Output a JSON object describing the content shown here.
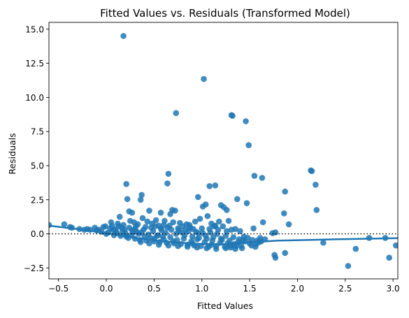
{
  "chart_data": {
    "type": "scatter",
    "title": "Fitted Values vs. Residuals (Transformed Model)",
    "xlabel": "Fitted Values",
    "ylabel": "Residuals",
    "xlim": [
      -0.6,
      3.05
    ],
    "ylim": [
      -3.3,
      15.5
    ],
    "x_ticks": [
      "−0.5",
      "0.0",
      "0.5",
      "1.0",
      "1.5",
      "2.0",
      "2.5",
      "3.0"
    ],
    "x_tick_values": [
      -0.5,
      0.0,
      0.5,
      1.0,
      1.5,
      2.0,
      2.5,
      3.0
    ],
    "y_ticks": [
      "−2.5",
      "0.0",
      "2.5",
      "5.0",
      "7.5",
      "10.0",
      "12.5",
      "15.0"
    ],
    "y_tick_values": [
      -2.5,
      0.0,
      2.5,
      5.0,
      7.5,
      10.0,
      12.5,
      15.0
    ],
    "grid": false,
    "point_color": "#1f77b4",
    "reference_line": {
      "y": 0,
      "style": "dotted",
      "color": "#000000"
    },
    "trend_line": {
      "x": [
        -0.6,
        -0.3,
        0.0,
        0.3,
        0.6,
        0.9,
        1.2,
        1.5,
        1.8,
        2.1,
        2.4,
        2.7,
        3.05
      ],
      "y": [
        0.6,
        0.35,
        0.05,
        -0.3,
        -0.55,
        -0.72,
        -0.78,
        -0.62,
        -0.5,
        -0.45,
        -0.4,
        -0.36,
        -0.32
      ]
    },
    "series": [
      {
        "points": [
          [
            0.18,
            14.5
          ],
          [
            1.02,
            11.35
          ],
          [
            0.73,
            8.85
          ],
          [
            1.31,
            8.7
          ],
          [
            1.32,
            8.65
          ],
          [
            1.46,
            8.25
          ],
          [
            1.49,
            6.5
          ],
          [
            2.14,
            4.65
          ],
          [
            2.15,
            4.6
          ],
          [
            1.55,
            4.25
          ],
          [
            1.63,
            4.1
          ],
          [
            0.65,
            4.4
          ],
          [
            0.64,
            3.7
          ],
          [
            0.21,
            3.65
          ],
          [
            1.08,
            3.5
          ],
          [
            1.14,
            3.55
          ],
          [
            1.87,
            3.1
          ],
          [
            2.19,
            3.6
          ],
          [
            1.37,
            2.55
          ],
          [
            1.47,
            2.25
          ],
          [
            0.37,
            2.85
          ],
          [
            0.36,
            2.5
          ],
          [
            0.22,
            2.55
          ],
          [
            0.96,
            2.7
          ],
          [
            1.01,
            2.0
          ],
          [
            1.04,
            2.15
          ],
          [
            1.2,
            2.1
          ],
          [
            1.23,
            1.95
          ],
          [
            1.26,
            1.75
          ],
          [
            0.24,
            1.65
          ],
          [
            0.27,
            1.55
          ],
          [
            0.45,
            1.7
          ],
          [
            0.57,
            1.55
          ],
          [
            0.67,
            1.45
          ],
          [
            0.69,
            1.75
          ],
          [
            0.72,
            1.7
          ],
          [
            2.2,
            1.75
          ],
          [
            1.86,
            1.5
          ],
          [
            1.91,
            0.7
          ],
          [
            1.64,
            0.85
          ],
          [
            1.54,
            0.4
          ],
          [
            1.77,
            0.1
          ],
          [
            1.74,
            0.05
          ],
          [
            1.35,
            0.35
          ],
          [
            1.4,
            0.2
          ],
          [
            1.43,
            -0.45
          ],
          [
            1.58,
            -0.5
          ],
          [
            1.61,
            -0.3
          ],
          [
            1.76,
            -1.55
          ],
          [
            1.77,
            -1.75
          ],
          [
            1.87,
            -1.4
          ],
          [
            2.27,
            -0.65
          ],
          [
            2.53,
            -2.35
          ],
          [
            2.61,
            -1.1
          ],
          [
            2.75,
            -0.3
          ],
          [
            2.92,
            -0.3
          ],
          [
            2.96,
            -1.75
          ],
          [
            3.03,
            -0.85
          ],
          [
            -0.6,
            0.65
          ],
          [
            -0.44,
            0.7
          ],
          [
            -0.38,
            0.5
          ],
          [
            -0.36,
            0.45
          ],
          [
            -0.28,
            0.35
          ],
          [
            -0.23,
            0.3
          ],
          [
            -0.17,
            0.3
          ],
          [
            -0.12,
            0.45
          ],
          [
            -0.08,
            0.3
          ],
          [
            -0.03,
            0.5
          ],
          [
            -0.01,
            0.55
          ],
          [
            0.05,
            0.85
          ],
          [
            0.06,
            0.6
          ],
          [
            0.12,
            0.75
          ],
          [
            0.14,
            1.25
          ],
          [
            0.16,
            0.45
          ],
          [
            0.19,
            0.3
          ],
          [
            0.25,
            0.95
          ],
          [
            0.29,
            0.85
          ],
          [
            0.33,
            0.7
          ],
          [
            0.38,
            1.15
          ],
          [
            0.43,
            0.9
          ],
          [
            0.48,
            0.75
          ],
          [
            0.52,
            1.0
          ],
          [
            0.55,
            0.6
          ],
          [
            0.61,
            0.95
          ],
          [
            0.66,
            0.6
          ],
          [
            0.7,
            0.85
          ],
          [
            0.77,
            0.8
          ],
          [
            0.8,
            0.55
          ],
          [
            0.84,
            0.7
          ],
          [
            0.88,
            0.45
          ],
          [
            0.93,
            0.9
          ],
          [
            0.98,
            1.1
          ],
          [
            1.06,
            1.3
          ],
          [
            1.1,
            0.75
          ],
          [
            1.13,
            0.55
          ],
          [
            1.18,
            0.9
          ],
          [
            1.22,
            0.55
          ],
          [
            1.28,
            0.95
          ],
          [
            1.31,
            0.3
          ],
          [
            0.02,
            0.1
          ],
          [
            0.08,
            -0.1
          ],
          [
            0.1,
            0.2
          ],
          [
            0.15,
            -0.15
          ],
          [
            0.2,
            0.05
          ],
          [
            0.23,
            -0.3
          ],
          [
            0.26,
            -0.1
          ],
          [
            0.3,
            -0.35
          ],
          [
            0.32,
            0.15
          ],
          [
            0.35,
            -0.45
          ],
          [
            0.4,
            -0.2
          ],
          [
            0.42,
            -0.5
          ],
          [
            0.46,
            -0.3
          ],
          [
            0.5,
            -0.55
          ],
          [
            0.53,
            -0.15
          ],
          [
            0.56,
            -0.6
          ],
          [
            0.6,
            -0.4
          ],
          [
            0.63,
            -0.65
          ],
          [
            0.67,
            -0.25
          ],
          [
            0.71,
            -0.7
          ],
          [
            0.74,
            -0.45
          ],
          [
            0.78,
            -0.75
          ],
          [
            0.81,
            -0.35
          ],
          [
            0.85,
            -0.8
          ],
          [
            0.89,
            -0.55
          ],
          [
            0.92,
            -0.85
          ],
          [
            0.95,
            -0.4
          ],
          [
            0.99,
            -0.9
          ],
          [
            1.03,
            -0.6
          ],
          [
            1.07,
            -0.95
          ],
          [
            1.11,
            -0.5
          ],
          [
            1.15,
            -0.9
          ],
          [
            1.19,
            -0.65
          ],
          [
            1.24,
            -0.95
          ],
          [
            1.27,
            -0.7
          ],
          [
            1.3,
            -1.0
          ],
          [
            1.34,
            -0.75
          ],
          [
            1.38,
            -0.6
          ],
          [
            1.41,
            -0.85
          ],
          [
            1.45,
            -0.55
          ],
          [
            1.5,
            -0.7
          ],
          [
            1.53,
            -0.45
          ],
          [
            0.07,
            0.3
          ],
          [
            0.11,
            0.05
          ],
          [
            0.17,
            0.2
          ],
          [
            0.21,
            -0.2
          ],
          [
            0.28,
            0.1
          ],
          [
            0.34,
            0.0
          ],
          [
            0.39,
            0.3
          ],
          [
            0.44,
            -0.05
          ],
          [
            0.49,
            0.2
          ],
          [
            0.54,
            -0.1
          ],
          [
            0.58,
            0.25
          ],
          [
            0.62,
            0.05
          ],
          [
            0.68,
            0.3
          ],
          [
            0.73,
            0.0
          ],
          [
            0.76,
            0.25
          ],
          [
            0.82,
            -0.1
          ],
          [
            0.86,
            0.2
          ],
          [
            0.9,
            -0.2
          ],
          [
            0.94,
            0.15
          ],
          [
            0.97,
            -0.3
          ],
          [
            1.01,
            0.05
          ],
          [
            1.05,
            -0.35
          ],
          [
            1.09,
            0.1
          ],
          [
            1.12,
            -0.25
          ],
          [
            1.16,
            0.0
          ],
          [
            1.21,
            -0.45
          ],
          [
            1.25,
            -0.15
          ],
          [
            1.29,
            -0.5
          ],
          [
            1.33,
            -0.25
          ],
          [
            1.36,
            -0.9
          ],
          [
            1.42,
            -1.05
          ],
          [
            1.48,
            -0.3
          ],
          [
            1.52,
            -0.85
          ],
          [
            1.57,
            -0.75
          ],
          [
            1.6,
            -0.6
          ],
          [
            1.66,
            -0.4
          ],
          [
            0.04,
            0.4
          ],
          [
            0.13,
            0.55
          ],
          [
            0.24,
            0.45
          ],
          [
            0.31,
            0.55
          ],
          [
            0.41,
            0.5
          ],
          [
            0.47,
            0.45
          ],
          [
            0.57,
            0.4
          ],
          [
            0.64,
            0.45
          ],
          [
            0.75,
            0.4
          ],
          [
            0.83,
            0.3
          ],
          [
            0.91,
            0.35
          ],
          [
            1.0,
            0.4
          ],
          [
            1.08,
            0.35
          ],
          [
            1.17,
            0.3
          ],
          [
            1.26,
            0.2
          ],
          [
            0.36,
            -0.6
          ],
          [
            0.45,
            -0.7
          ],
          [
            0.55,
            -0.8
          ],
          [
            0.65,
            -0.85
          ],
          [
            0.75,
            -0.9
          ],
          [
            0.85,
            -0.95
          ],
          [
            0.95,
            -1.0
          ],
          [
            1.05,
            -1.05
          ],
          [
            1.15,
            -1.1
          ],
          [
            1.25,
            -1.05
          ],
          [
            1.35,
            -1.1
          ],
          [
            0.5,
            -0.35
          ],
          [
            0.7,
            -0.55
          ],
          [
            0.9,
            -0.7
          ],
          [
            1.1,
            -0.8
          ],
          [
            1.3,
            -0.85
          ],
          [
            0.3,
            0.35
          ],
          [
            0.6,
            0.65
          ],
          [
            0.87,
            0.65
          ],
          [
            1.14,
            0.6
          ],
          [
            0.0,
            0.0
          ],
          [
            -0.05,
            0.15
          ],
          [
            -0.1,
            0.25
          ],
          [
            -0.2,
            0.35
          ],
          [
            0.09,
            0.35
          ],
          [
            0.18,
            0.65
          ],
          [
            0.27,
            0.25
          ],
          [
            0.37,
            0.1
          ],
          [
            0.51,
            0.55
          ],
          [
            0.59,
            -0.2
          ],
          [
            0.79,
            0.1
          ],
          [
            0.96,
            0.05
          ],
          [
            1.04,
            -0.15
          ],
          [
            1.2,
            -0.35
          ],
          [
            1.39,
            -0.4
          ],
          [
            1.44,
            -0.2
          ],
          [
            1.56,
            -0.95
          ],
          [
            1.62,
            -0.55
          ]
        ]
      }
    ]
  }
}
